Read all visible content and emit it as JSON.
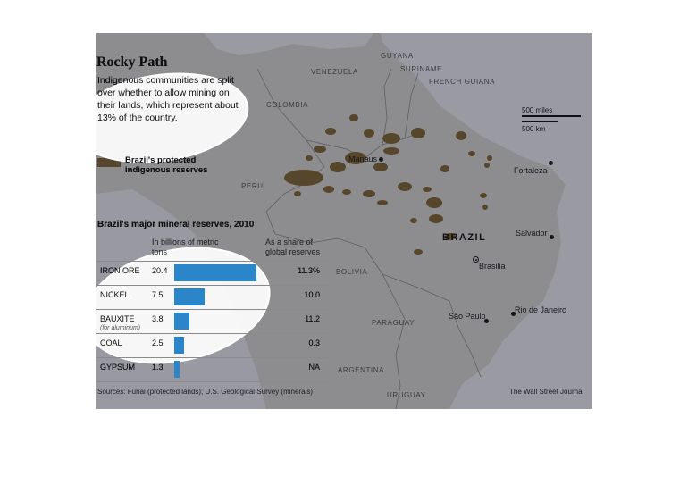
{
  "map": {
    "title": "Rocky Path",
    "description": "Indigenous communities are split over whether to allow mining on their lands, which represent about 13% of the country.",
    "legend": {
      "label": "Brazil's protected indigenous reserves",
      "color": "#8a6d33"
    },
    "scale": {
      "miles": "500 miles",
      "km": "500 km"
    },
    "countries": {
      "guyana": "GUYANA",
      "suriname": "SURINAME",
      "french_guiana": "FRENCH GUIANA",
      "venezuela": "VENEZUELA",
      "colombia": "COLOMBIA",
      "peru": "PERU",
      "bolivia": "BOLIVIA",
      "paraguay": "PARAGUAY",
      "argentina": "ARGENTINA",
      "uruguay": "URUGUAY",
      "brazil": "BRAZIL"
    },
    "cities": {
      "manaus": "Manaus",
      "fortaleza": "Fortaleza",
      "salvador": "Salvador",
      "brasilia": "Brasilia",
      "sao_paulo": "São Paulo",
      "rio": "Rio de Janeiro"
    }
  },
  "table": {
    "title": "Brazil's major mineral reserves, 2010",
    "col_amount": "In billions of metric tons",
    "col_share": "As a share of global reserves",
    "rows": [
      {
        "label": "IRON ORE",
        "value": "20.4",
        "amount": 20.4,
        "share": "11.3%"
      },
      {
        "label": "NICKEL",
        "value": "7.5",
        "amount": 7.5,
        "share": "10.0"
      },
      {
        "label": "BAUXITE",
        "sublabel": "(for aluminum)",
        "value": "3.8",
        "amount": 3.8,
        "share": "11.2"
      },
      {
        "label": "COAL",
        "value": "2.5",
        "amount": 2.5,
        "share": "0.3"
      },
      {
        "label": "GYPSUM",
        "value": "1.3",
        "amount": 1.3,
        "share": "NA"
      }
    ],
    "bar_color": "#2a86c9"
  },
  "footer": {
    "sources": "Sources: Funai (protected lands); U.S. Geological Survey (minerals)",
    "credit": "The Wall Street Journal"
  },
  "colors": {
    "land": "#e9e7df",
    "water": "#ffffff",
    "overlay": "#0e1022",
    "highlight": "#ffffff"
  }
}
